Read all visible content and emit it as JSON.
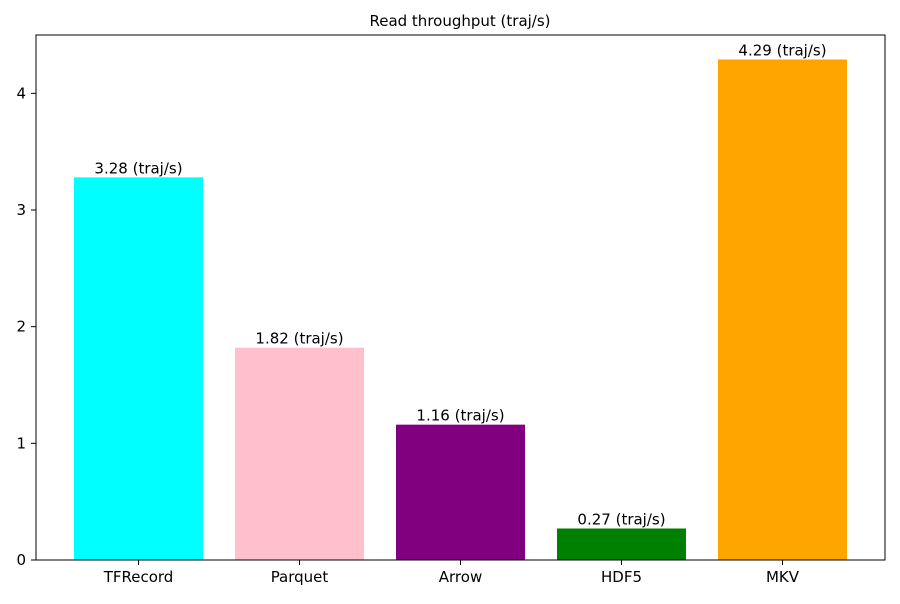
{
  "chart_data": {
    "type": "bar",
    "title": "Read throughput (traj/s)",
    "xlabel": "",
    "ylabel": "",
    "categories": [
      "TFRecord",
      "Parquet",
      "Arrow",
      "HDF5",
      "MKV"
    ],
    "values": [
      3.28,
      1.82,
      1.16,
      0.27,
      4.29
    ],
    "value_labels": [
      "3.28 (traj/s)",
      "1.82 (traj/s)",
      "1.16 (traj/s)",
      "0.27 (traj/s)",
      "4.29 (traj/s)"
    ],
    "colors": [
      "#00ffff",
      "#ffc0cb",
      "#800080",
      "#008000",
      "#ffa500"
    ],
    "ylim": [
      0,
      4.5
    ],
    "yticks": [
      0,
      1,
      2,
      3,
      4
    ],
    "grid": false,
    "legend": "none"
  }
}
